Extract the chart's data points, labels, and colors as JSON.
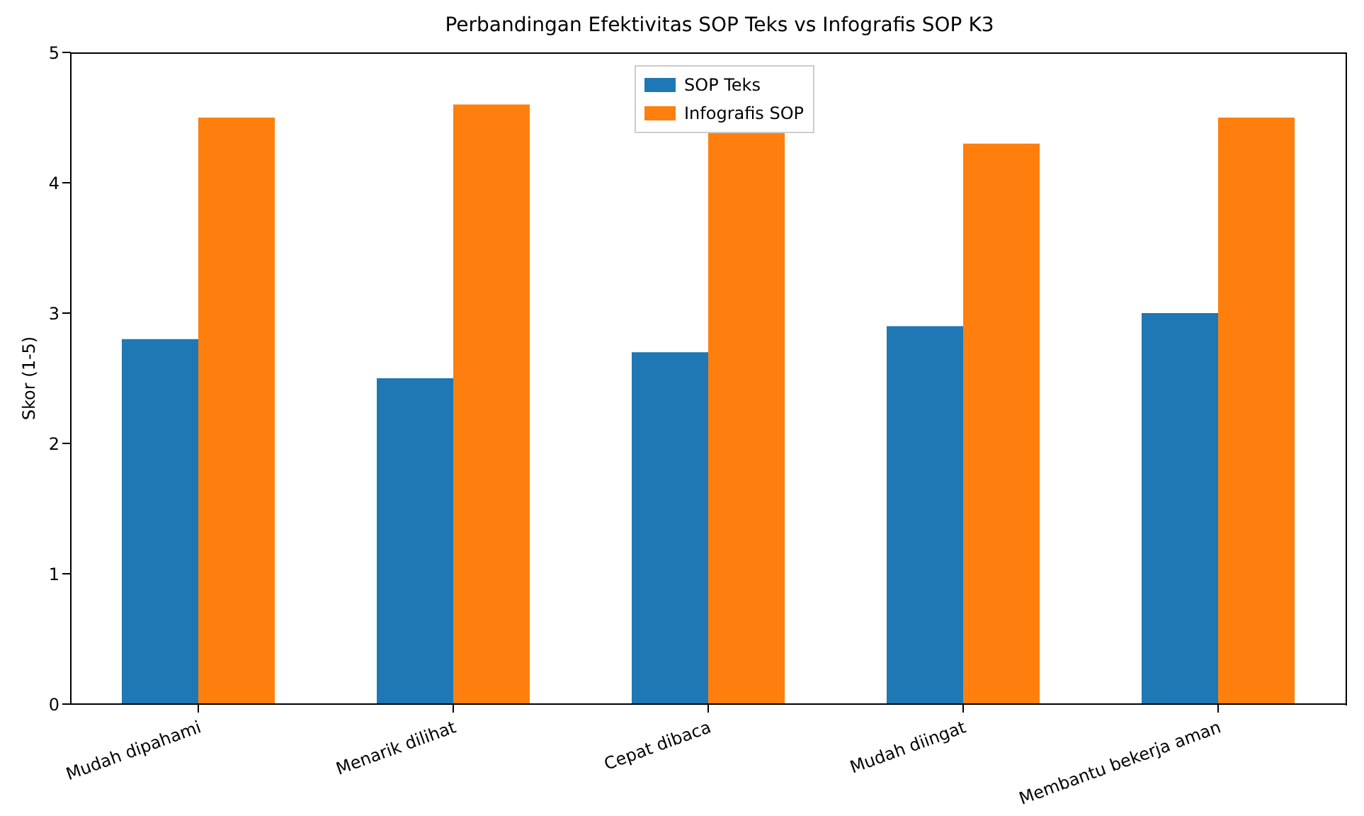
{
  "chart_data": {
    "type": "bar",
    "title": "Perbandingan Efektivitas SOP Teks vs Infografis SOP K3",
    "ylabel": "Skor (1-5)",
    "categories": [
      "Mudah dipahami",
      "Menarik dilihat",
      "Cepat dibaca",
      "Mudah diingat",
      "Membantu bekerja aman"
    ],
    "series": [
      {
        "name": "SOP Teks",
        "color": "#1f77b4",
        "values": [
          2.8,
          2.5,
          2.7,
          2.9,
          3.0
        ]
      },
      {
        "name": "Infografis SOP",
        "color": "#ff7f0e",
        "values": [
          4.5,
          4.6,
          4.4,
          4.3,
          4.5
        ]
      }
    ],
    "ylim": [
      0,
      5
    ],
    "yticks": [
      0,
      1,
      2,
      3,
      4,
      5
    ],
    "legend": "top"
  }
}
